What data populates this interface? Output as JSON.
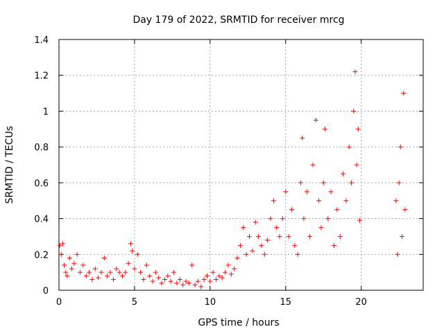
{
  "chart_data": {
    "type": "scatter",
    "title": "Day 179 of 2022, SRMTID for receiver mrcg",
    "xlabel": "GPS time / hours",
    "ylabel": "SRMTID / TECUs",
    "xlim": [
      0,
      24.1
    ],
    "ylim": [
      0,
      1.4
    ],
    "x_ticks": [
      0,
      5,
      10,
      15,
      20
    ],
    "x_tick_labels": [
      "0",
      "5",
      "10",
      "15",
      "20"
    ],
    "y_ticks": [
      0,
      0.2,
      0.4,
      0.6,
      0.8,
      1,
      1.2,
      1.4
    ],
    "y_tick_labels": [
      "0",
      "0.2",
      "0.4",
      "0.6",
      "0.8",
      "1",
      "1.2",
      "1.4"
    ],
    "grid": true,
    "marker": "+",
    "series": [
      {
        "name": "SRMTID",
        "color": "#ff0000",
        "x": [
          0.05,
          0.15,
          0.25,
          0.35,
          0.45,
          0.55,
          0.7,
          0.85,
          1.0,
          1.2,
          1.4,
          1.6,
          1.8,
          2.0,
          2.2,
          2.4,
          2.6,
          2.8,
          3.0,
          3.2,
          3.4,
          3.6,
          3.8,
          4.0,
          4.2,
          4.4,
          4.6,
          4.75,
          4.85,
          5.0,
          5.2,
          5.4,
          5.6,
          5.8,
          6.0,
          6.2,
          6.4,
          6.6,
          6.8,
          7.0,
          7.2,
          7.4,
          7.6,
          7.8,
          8.0,
          8.2,
          8.4,
          8.6,
          8.8,
          9.0,
          9.2,
          9.4,
          9.6,
          9.8,
          10.0,
          10.2,
          10.4,
          10.6,
          10.8,
          11.0,
          11.2,
          11.4,
          11.6,
          11.8,
          12.0,
          12.2,
          12.4,
          12.6,
          12.8,
          13.0,
          13.2,
          13.4,
          13.6,
          13.8,
          14.0,
          14.2,
          14.4,
          14.6,
          14.8,
          15.0,
          15.2,
          15.4,
          15.6,
          15.8,
          16.0,
          16.1,
          16.2,
          16.4,
          16.6,
          16.8,
          17.0,
          17.2,
          17.35,
          17.5,
          17.6,
          17.8,
          18.0,
          18.2,
          18.4,
          18.6,
          18.8,
          19.0,
          19.2,
          19.35,
          19.5,
          19.6,
          19.7,
          19.8,
          19.9,
          22.3,
          22.4,
          22.5,
          22.6,
          22.7,
          22.8,
          22.9
        ],
        "y": [
          0.25,
          0.2,
          0.26,
          0.14,
          0.1,
          0.08,
          0.18,
          0.12,
          0.15,
          0.2,
          0.1,
          0.14,
          0.08,
          0.1,
          0.06,
          0.12,
          0.07,
          0.1,
          0.18,
          0.08,
          0.1,
          0.06,
          0.12,
          0.1,
          0.08,
          0.1,
          0.15,
          0.26,
          0.22,
          0.12,
          0.2,
          0.1,
          0.06,
          0.14,
          0.08,
          0.05,
          0.1,
          0.07,
          0.04,
          0.06,
          0.08,
          0.05,
          0.1,
          0.04,
          0.06,
          0.03,
          0.05,
          0.04,
          0.14,
          0.03,
          0.05,
          0.02,
          0.06,
          0.08,
          0.05,
          0.1,
          0.06,
          0.08,
          0.07,
          0.1,
          0.14,
          0.09,
          0.12,
          0.18,
          0.25,
          0.35,
          0.2,
          0.3,
          0.22,
          0.38,
          0.3,
          0.25,
          0.2,
          0.28,
          0.4,
          0.5,
          0.35,
          0.3,
          0.4,
          0.55,
          0.3,
          0.45,
          0.25,
          0.2,
          0.6,
          0.85,
          0.4,
          0.55,
          0.3,
          0.7,
          0.95,
          0.5,
          0.35,
          0.6,
          0.9,
          0.4,
          0.55,
          0.25,
          0.45,
          0.3,
          0.65,
          0.5,
          0.8,
          0.6,
          1.0,
          1.22,
          0.7,
          0.9,
          0.39,
          0.5,
          0.2,
          0.6,
          0.8,
          0.3,
          1.1,
          0.45
        ]
      }
    ]
  }
}
